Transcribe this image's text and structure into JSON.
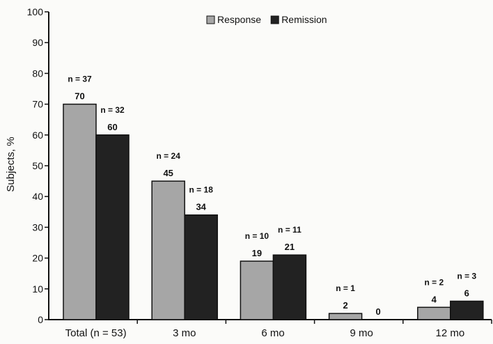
{
  "chart_data": {
    "type": "bar",
    "categories": [
      "Total (n = 53)",
      "3 mo",
      "6 mo",
      "9 mo",
      "12 mo"
    ],
    "series": [
      {
        "name": "Response",
        "color": "#a6a6a6",
        "values": [
          70,
          45,
          19,
          2,
          4
        ],
        "n_labels": [
          "n = 37",
          "n = 24",
          "n = 10",
          "n = 1",
          "n = 2"
        ]
      },
      {
        "name": "Remission",
        "color": "#222222",
        "values": [
          60,
          34,
          21,
          0,
          6
        ],
        "n_labels": [
          "n = 32",
          "n = 18",
          "n = 11",
          "",
          "n = 3"
        ]
      }
    ],
    "ylabel": "Subjects, %",
    "xlabel": "",
    "ylim": [
      0,
      100
    ],
    "yticks": [
      0,
      10,
      20,
      30,
      40,
      50,
      60,
      70,
      80,
      90,
      100
    ],
    "legend": "top-center",
    "grid": false
  }
}
